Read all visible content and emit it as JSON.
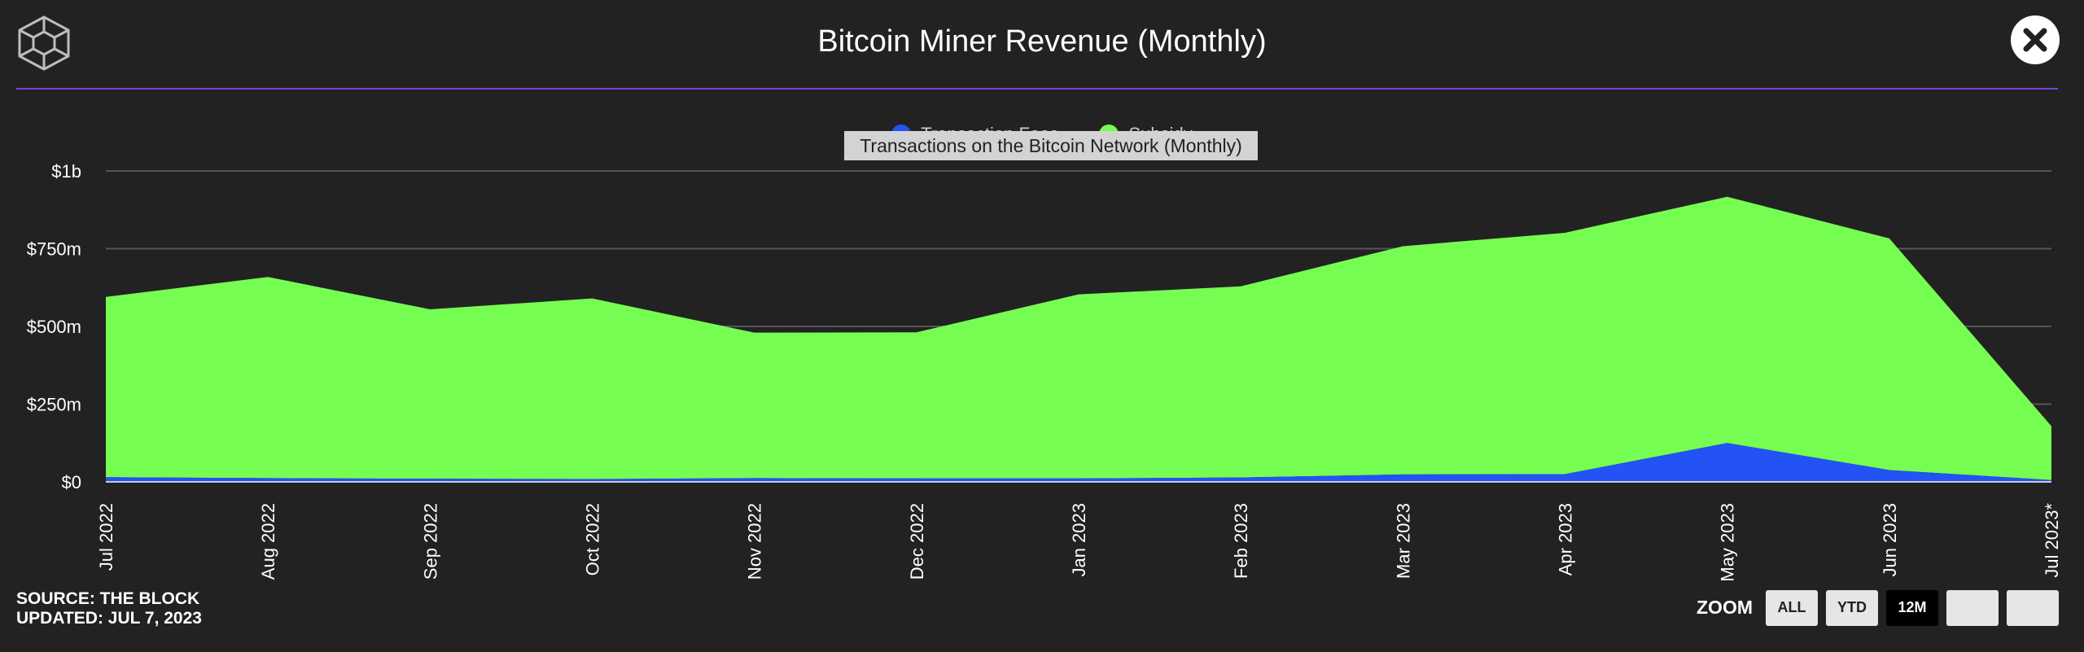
{
  "header": {
    "title": "Bitcoin Miner Revenue (Monthly)",
    "close_icon": "close-icon",
    "logo_icon": "cube-logo-icon"
  },
  "legend": {
    "items": [
      {
        "label": "Transaction Fees",
        "color": "#2352f5"
      },
      {
        "label": "Subsidy",
        "color": "#76fd52"
      }
    ]
  },
  "tooltip": {
    "text": "Transactions on the Bitcoin Network (Monthly)"
  },
  "footer": {
    "source": "SOURCE: THE BLOCK",
    "updated": "UPDATED: JUL 7, 2023"
  },
  "zoom": {
    "label": "ZOOM",
    "buttons": [
      {
        "label": "ALL",
        "active": false
      },
      {
        "label": "YTD",
        "active": false
      },
      {
        "label": "12M",
        "active": true
      },
      {
        "label": "",
        "active": false
      },
      {
        "label": "",
        "active": false
      }
    ]
  },
  "colors": {
    "background": "#222222",
    "divider": "#7b3fe4",
    "fees": "#2352f5",
    "subsidy": "#76fd52",
    "grid": "#555555"
  },
  "chart_data": {
    "type": "area",
    "stacked": true,
    "title": "Bitcoin Miner Revenue (Monthly)",
    "categories": [
      "Jul 2022",
      "Aug 2022",
      "Sep 2022",
      "Oct 2022",
      "Nov 2022",
      "Dec 2022",
      "Jan 2023",
      "Feb 2023",
      "Mar 2023",
      "Apr 2023",
      "May 2023",
      "Jun 2023",
      "Jul 2023*"
    ],
    "series": [
      {
        "name": "Transaction Fees",
        "values": [
          15,
          12,
          10,
          9,
          12,
          11,
          11,
          14,
          24,
          25,
          125,
          38,
          6
        ]
      },
      {
        "name": "Subsidy",
        "values": [
          580,
          647,
          545,
          581,
          468,
          470,
          592,
          615,
          734,
          776,
          792,
          745,
          173
        ]
      }
    ],
    "yticks": [
      {
        "value": 0,
        "label": "$0"
      },
      {
        "value": 250,
        "label": "$250m"
      },
      {
        "value": 500,
        "label": "$500m"
      },
      {
        "value": 750,
        "label": "$750m"
      },
      {
        "value": 1000,
        "label": "$1b"
      }
    ],
    "ylim": [
      0,
      1000
    ],
    "unit": "million USD",
    "grid": true,
    "legend": "top-center"
  }
}
